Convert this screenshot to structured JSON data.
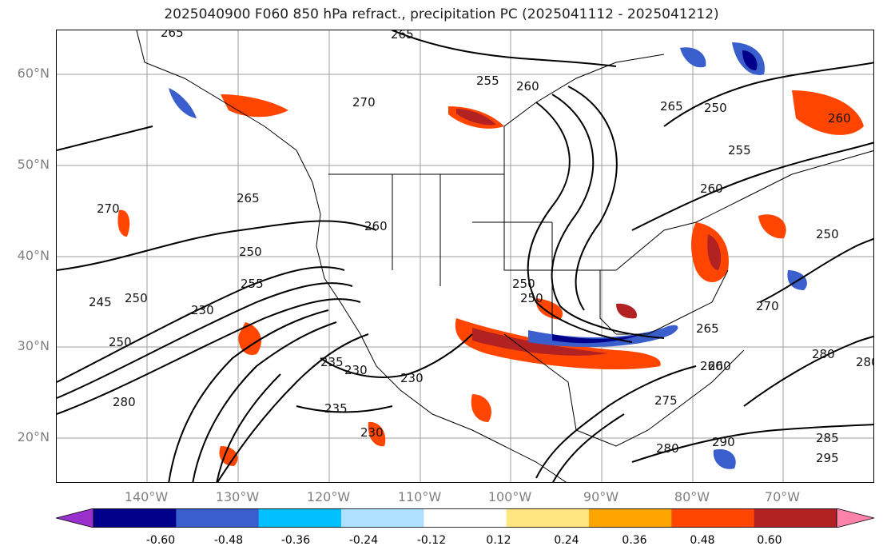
{
  "title": "2025040900 F060 850 hPa refract., precipitation PC (2025041112 - 2025041212)",
  "lat_labels": [
    "60°N",
    "50°N",
    "40°N",
    "30°N",
    "20°N"
  ],
  "lon_labels": [
    "140°W",
    "130°W",
    "120°W",
    "110°W",
    "100°W",
    "90°W",
    "80°W",
    "70°W"
  ],
  "colorbar": {
    "colors": [
      "#9932cc",
      "#00008b",
      "#3a5fcd",
      "#00bfff",
      "#b0e0ff",
      "#ffffff",
      "#ffe680",
      "#ffa500",
      "#ff4500",
      "#b22222",
      "#ff82ab"
    ],
    "tick_labels": [
      "-0.60",
      "-0.48",
      "-0.36",
      "-0.24",
      "-0.12",
      "0.12",
      "0.24",
      "0.36",
      "0.48",
      "0.60"
    ]
  },
  "contour_labels": [
    "265",
    "265",
    "260",
    "255",
    "270",
    "265",
    "250",
    "255",
    "260",
    "260",
    "270",
    "265",
    "260",
    "255",
    "250",
    "245",
    "250",
    "230",
    "250",
    "235",
    "230",
    "230",
    "235",
    "230",
    "250",
    "265",
    "260",
    "270",
    "275",
    "280",
    "285",
    "290",
    "295",
    "280",
    "260",
    "250",
    "250",
    "280",
    "280"
  ]
}
